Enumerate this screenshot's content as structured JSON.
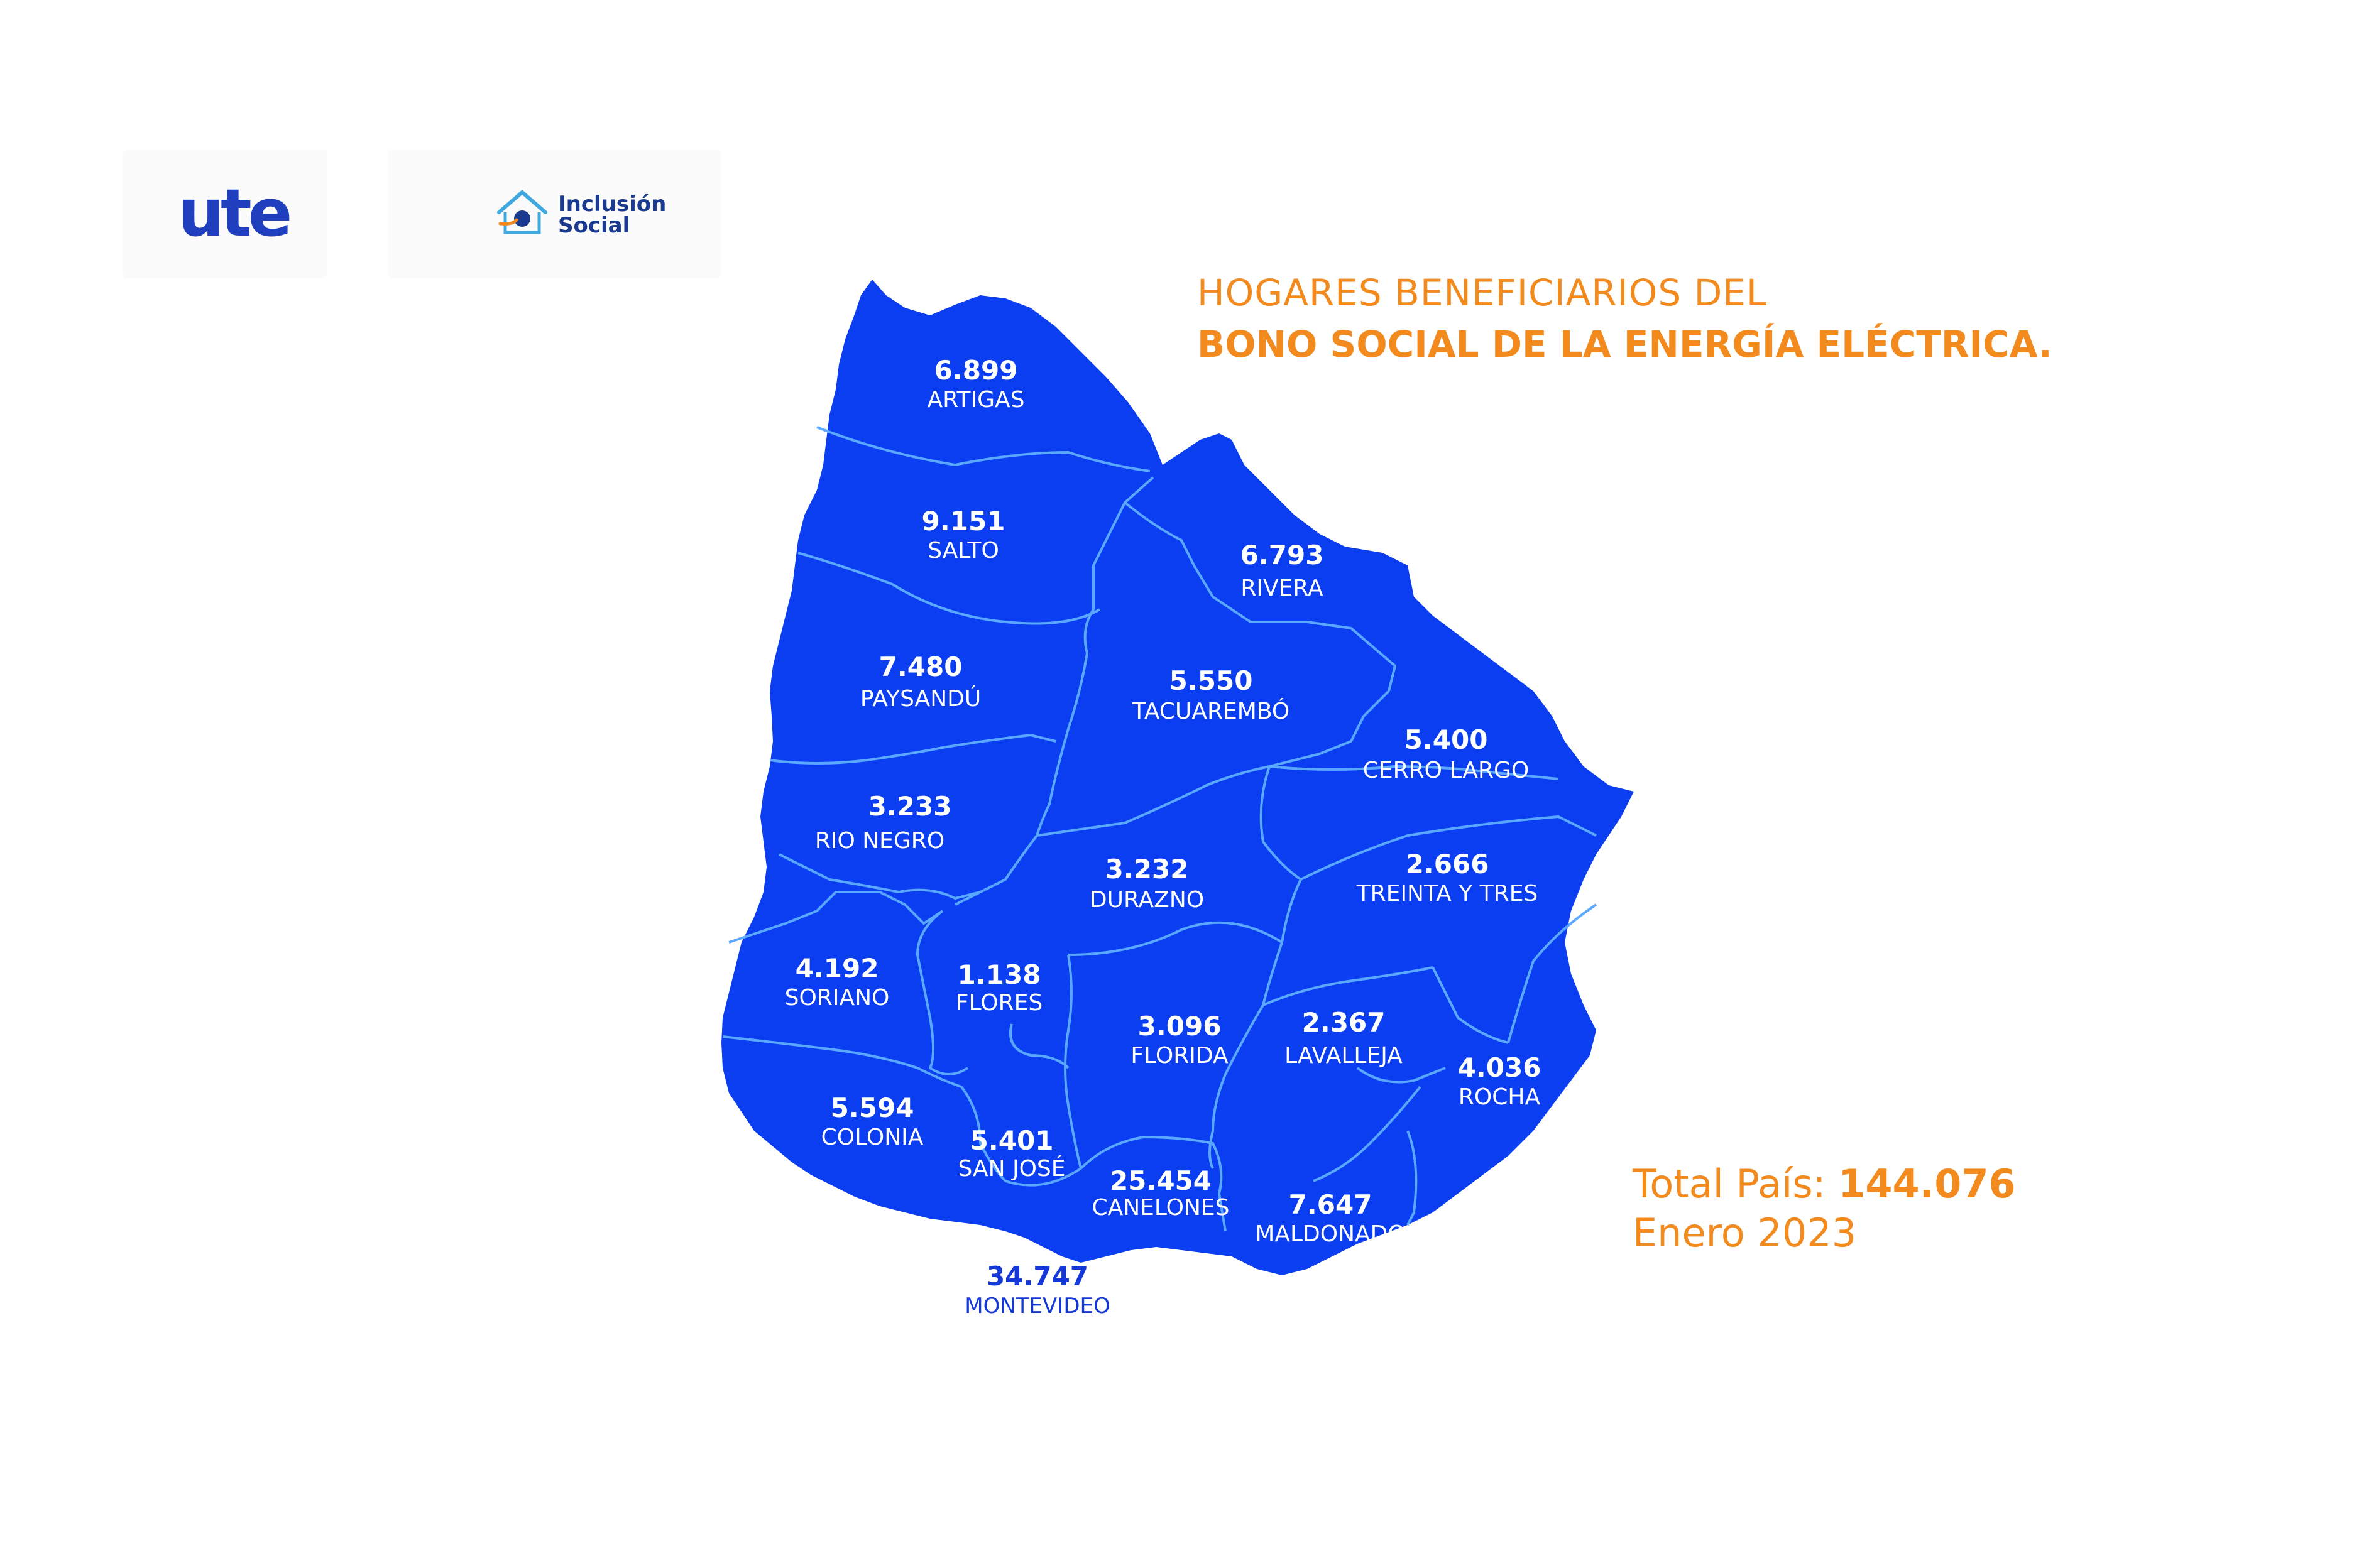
{
  "logos": {
    "ute": "ute",
    "inclusion_line1": "Inclusión",
    "inclusion_line2": "Social"
  },
  "title": {
    "line1": "HOGARES BENEFICIARIOS DEL",
    "line2": "BONO SOCIAL DE LA ENERGÍA ELÉCTRICA."
  },
  "total": {
    "label": "Total País: ",
    "value": "144.076",
    "date": "Enero 2023"
  },
  "colors": {
    "map_fill": "#0a3ef0",
    "borders": "#5aa8ff",
    "accent": "#f28a1e"
  },
  "departments": [
    {
      "name": "ARTIGAS",
      "value": "6.899"
    },
    {
      "name": "SALTO",
      "value": "9.151"
    },
    {
      "name": "RIVERA",
      "value": "6.793"
    },
    {
      "name": "PAYSANDÚ",
      "value": "7.480"
    },
    {
      "name": "TACUAREMBÓ",
      "value": "5.550"
    },
    {
      "name": "CERRO LARGO",
      "value": "5.400"
    },
    {
      "name": "RIO NEGRO",
      "value": "3.233"
    },
    {
      "name": "DURAZNO",
      "value": "3.232"
    },
    {
      "name": "TREINTA Y TRES",
      "value": "2.666"
    },
    {
      "name": "SORIANO",
      "value": "4.192"
    },
    {
      "name": "FLORES",
      "value": "1.138"
    },
    {
      "name": "FLORIDA",
      "value": "3.096"
    },
    {
      "name": "LAVALLEJA",
      "value": "2.367"
    },
    {
      "name": "ROCHA",
      "value": "4.036"
    },
    {
      "name": "COLONIA",
      "value": "5.594"
    },
    {
      "name": "SAN JOSÉ",
      "value": "5.401"
    },
    {
      "name": "CANELONES",
      "value": "25.454"
    },
    {
      "name": "MALDONADO",
      "value": "7.647"
    },
    {
      "name": "MONTEVIDEO",
      "value": "34.747"
    }
  ]
}
